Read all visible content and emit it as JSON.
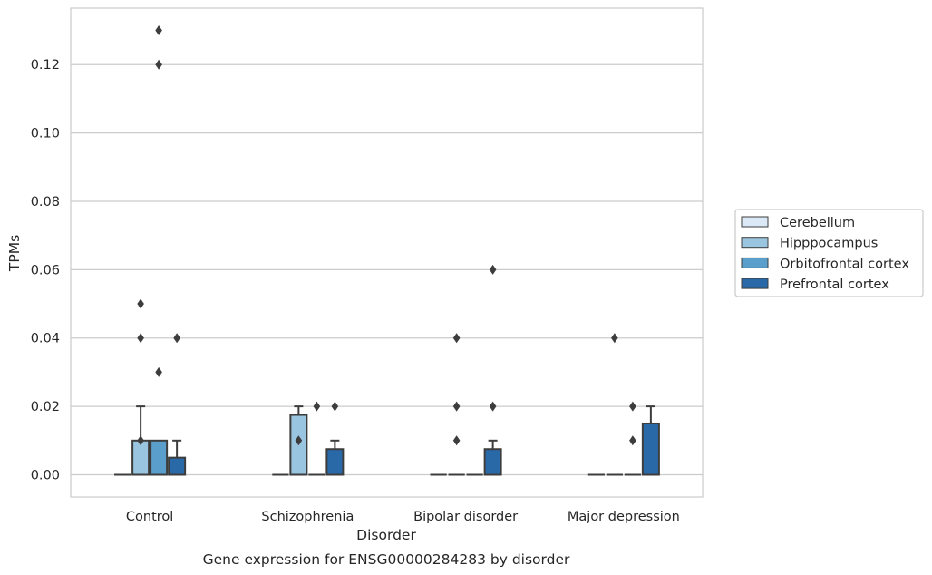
{
  "chart_data": {
    "type": "box",
    "caption": "Gene expression for ENSG00000284283 by disorder",
    "xlabel": "Disorder",
    "ylabel": "TPMs",
    "ylim": [
      -0.0065,
      0.1365
    ],
    "yticks": [
      0.0,
      0.02,
      0.04,
      0.06,
      0.08,
      0.1,
      0.12
    ],
    "ytick_labels": [
      "0.00",
      "0.02",
      "0.04",
      "0.06",
      "0.08",
      "0.10",
      "0.12"
    ],
    "grid": "horizontal",
    "legend_position": "right",
    "categories": [
      "Control",
      "Schizophrenia",
      "Bipolar disorder",
      "Major depression"
    ],
    "series": [
      {
        "name": "Cerebellum",
        "color": "#dbe9f6",
        "boxes": [
          {
            "q1": 0,
            "median": 0,
            "q3": 0,
            "whislo": 0,
            "whishi": 0,
            "fliers": []
          },
          {
            "q1": 0,
            "median": 0,
            "q3": 0,
            "whislo": 0,
            "whishi": 0,
            "fliers": []
          },
          {
            "q1": 0,
            "median": 0,
            "q3": 0,
            "whislo": 0,
            "whishi": 0,
            "fliers": []
          },
          {
            "q1": 0,
            "median": 0,
            "q3": 0,
            "whislo": 0,
            "whishi": 0,
            "fliers": []
          }
        ]
      },
      {
        "name": "Hipppocampus",
        "color": "#9ac5e0",
        "boxes": [
          {
            "q1": 0,
            "median": 0,
            "q3": 0.01,
            "whislo": 0,
            "whishi": 0.02,
            "fliers": [
              0.01,
              0.04,
              0.05
            ]
          },
          {
            "q1": 0,
            "median": 0,
            "q3": 0.0175,
            "whislo": 0,
            "whishi": 0.02,
            "fliers": [
              0.01
            ]
          },
          {
            "q1": 0,
            "median": 0,
            "q3": 0,
            "whislo": 0,
            "whishi": 0,
            "fliers": [
              0.01,
              0.02,
              0.04
            ]
          },
          {
            "q1": 0,
            "median": 0,
            "q3": 0,
            "whislo": 0,
            "whishi": 0,
            "fliers": [
              0.04
            ]
          }
        ]
      },
      {
        "name": "Orbitofrontal cortex",
        "color": "#5a9ecb",
        "boxes": [
          {
            "q1": 0,
            "median": 0,
            "q3": 0.01,
            "whislo": 0,
            "whishi": 0.01,
            "fliers": [
              0.03,
              0.12,
              0.13
            ]
          },
          {
            "q1": 0,
            "median": 0,
            "q3": 0,
            "whislo": 0,
            "whishi": 0,
            "fliers": [
              0.02
            ]
          },
          {
            "q1": 0,
            "median": 0,
            "q3": 0,
            "whislo": 0,
            "whishi": 0,
            "fliers": []
          },
          {
            "q1": 0,
            "median": 0,
            "q3": 0,
            "whislo": 0,
            "whishi": 0,
            "fliers": [
              0.01,
              0.02
            ]
          }
        ]
      },
      {
        "name": "Prefrontal cortex",
        "color": "#2a69a8",
        "boxes": [
          {
            "q1": 0,
            "median": 0,
            "q3": 0.005,
            "whislo": 0,
            "whishi": 0.01,
            "fliers": [
              0.04
            ]
          },
          {
            "q1": 0,
            "median": 0,
            "q3": 0.0075,
            "whislo": 0,
            "whishi": 0.01,
            "fliers": [
              0.02
            ]
          },
          {
            "q1": 0,
            "median": 0,
            "q3": 0.0075,
            "whislo": 0,
            "whishi": 0.01,
            "fliers": [
              0.02,
              0.06
            ]
          },
          {
            "q1": 0,
            "median": 0,
            "q3": 0.015,
            "whislo": 0,
            "whishi": 0.02,
            "fliers": []
          }
        ]
      }
    ]
  }
}
